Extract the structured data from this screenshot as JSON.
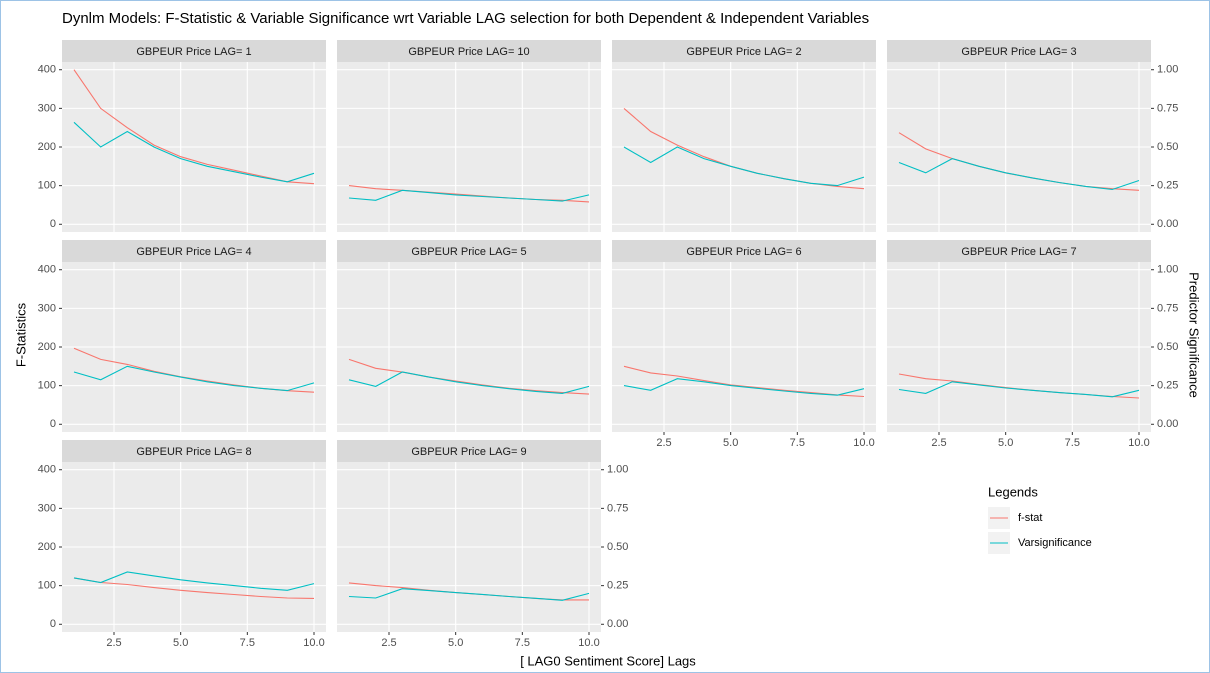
{
  "chart_data": {
    "type": "line",
    "title": "Dynlm Models: F-Statistic & Variable Significance wrt Variable LAG selection for both Dependent & Independent Variables",
    "x_label": "[ LAG0 Sentiment Score] Lags",
    "y_label": "F-Statistics",
    "y2_label": "Predictor Significance",
    "legend_title": "Legends",
    "grid": true,
    "x": [
      1,
      2,
      3,
      4,
      5,
      6,
      7,
      8,
      9,
      10
    ],
    "xlim": [
      0.55,
      10.45
    ],
    "xticks": [
      2.5,
      {
        "value": 5,
        "label": "5.0"
      },
      7.5,
      {
        "value": 10,
        "label": "10.0"
      }
    ],
    "ylim": [
      -20,
      420
    ],
    "yticks": [
      0,
      100,
      200,
      300,
      400
    ],
    "y2lim": [
      -0.05,
      1.05
    ],
    "y2ticks": [
      {
        "value": 0,
        "label": "0.00"
      },
      0.25,
      {
        "value": 0.5,
        "label": "0.50"
      },
      0.75,
      {
        "value": 1,
        "label": "1.00"
      }
    ],
    "series": [
      {
        "name": "f-stat",
        "color": "#f8766d"
      },
      {
        "name": "Varsignificance",
        "color": "#00bfc4",
        "axis": "y2"
      }
    ],
    "panels": [
      {
        "title": "GBPEUR Price LAG= 1",
        "series": [
          {
            "values": [
              400,
              300,
              250,
              205,
              175,
              155,
              140,
              125,
              110,
              105
            ]
          },
          {
            "values": [
              0.66,
              0.5,
              0.6,
              0.5,
              0.425,
              0.375,
              0.34,
              0.305,
              0.275,
              0.33
            ]
          }
        ]
      },
      {
        "title": "GBPEUR Price LAG= 10",
        "series": [
          {
            "values": [
              100,
              92,
              88,
              83,
              78,
              73,
              68,
              64,
              62,
              58
            ]
          },
          {
            "values": [
              0.17,
              0.155,
              0.22,
              0.205,
              0.19,
              0.18,
              0.17,
              0.16,
              0.15,
              0.19
            ]
          }
        ]
      },
      {
        "title": "GBPEUR Price LAG= 2",
        "series": [
          {
            "values": [
              300,
              240,
              205,
              175,
              150,
              132,
              118,
              106,
              98,
              92
            ]
          },
          {
            "values": [
              0.5,
              0.4,
              0.5,
              0.425,
              0.375,
              0.33,
              0.295,
              0.265,
              0.25,
              0.305
            ]
          }
        ]
      },
      {
        "title": "GBPEUR Price LAG= 3",
        "series": [
          {
            "values": [
              237,
              195,
              170,
              150,
              133,
              120,
              108,
              98,
              92,
              88
            ]
          },
          {
            "values": [
              0.4,
              0.333,
              0.425,
              0.375,
              0.333,
              0.3,
              0.27,
              0.245,
              0.225,
              0.283
            ]
          }
        ]
      },
      {
        "title": "GBPEUR Price LAG= 4",
        "series": [
          {
            "values": [
              197,
              168,
              155,
              137,
              123,
              112,
              102,
              93,
              87,
              83
            ]
          },
          {
            "values": [
              0.338,
              0.288,
              0.375,
              0.338,
              0.305,
              0.275,
              0.25,
              0.233,
              0.218,
              0.268
            ]
          }
        ]
      },
      {
        "title": "GBPEUR Price LAG= 5",
        "series": [
          {
            "values": [
              168,
              145,
              135,
              122,
              112,
              102,
              93,
              87,
              82,
              78
            ]
          },
          {
            "values": [
              0.288,
              0.245,
              0.338,
              0.305,
              0.275,
              0.25,
              0.23,
              0.213,
              0.2,
              0.245
            ]
          }
        ]
      },
      {
        "title": "GBPEUR Price LAG= 6",
        "series": [
          {
            "values": [
              150,
              133,
              125,
              113,
              102,
              95,
              88,
              82,
              76,
              72
            ]
          },
          {
            "values": [
              0.25,
              0.22,
              0.295,
              0.275,
              0.25,
              0.233,
              0.215,
              0.2,
              0.188,
              0.23
            ]
          }
        ]
      },
      {
        "title": "GBPEUR Price LAG= 7",
        "series": [
          {
            "values": [
              130,
              118,
              112,
              103,
              95,
              88,
              82,
              77,
              72,
              68
            ]
          },
          {
            "values": [
              0.225,
              0.2,
              0.275,
              0.255,
              0.235,
              0.22,
              0.205,
              0.193,
              0.178,
              0.22
            ]
          }
        ]
      },
      {
        "title": "GBPEUR Price LAG= 8",
        "series": [
          {
            "values": [
              120,
              108,
              103,
              95,
              88,
              82,
              77,
              72,
              68,
              67
            ]
          },
          {
            "values": [
              0.3,
              0.27,
              0.338,
              0.313,
              0.288,
              0.268,
              0.25,
              0.233,
              0.22,
              0.263
            ]
          }
        ]
      },
      {
        "title": "GBPEUR Price LAG= 9",
        "series": [
          {
            "values": [
              107,
              100,
              95,
              88,
              82,
              77,
              72,
              67,
              63,
              63
            ]
          },
          {
            "values": [
              0.18,
              0.17,
              0.23,
              0.218,
              0.205,
              0.193,
              0.18,
              0.168,
              0.155,
              0.2
            ]
          }
        ]
      }
    ]
  }
}
